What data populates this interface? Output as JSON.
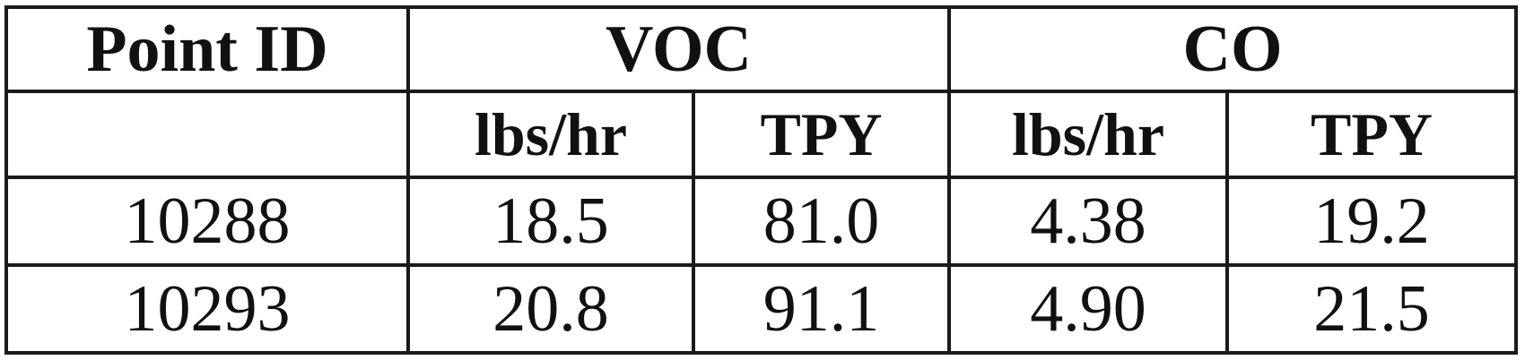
{
  "table": {
    "header": {
      "point_id": "Point ID",
      "voc": "VOC",
      "co": "CO"
    },
    "subheader": {
      "blank": "",
      "voc_lbs_hr": "lbs/hr",
      "voc_tpy": "TPY",
      "co_lbs_hr": "lbs/hr",
      "co_tpy": "TPY"
    },
    "rows": [
      {
        "point_id": "10288",
        "voc_lbs_hr": "18.5",
        "voc_tpy": "81.0",
        "co_lbs_hr": "4.38",
        "co_tpy": "19.2"
      },
      {
        "point_id": "10293",
        "voc_lbs_hr": "20.8",
        "voc_tpy": "91.1",
        "co_lbs_hr": "4.90",
        "co_tpy": "21.5"
      }
    ]
  }
}
